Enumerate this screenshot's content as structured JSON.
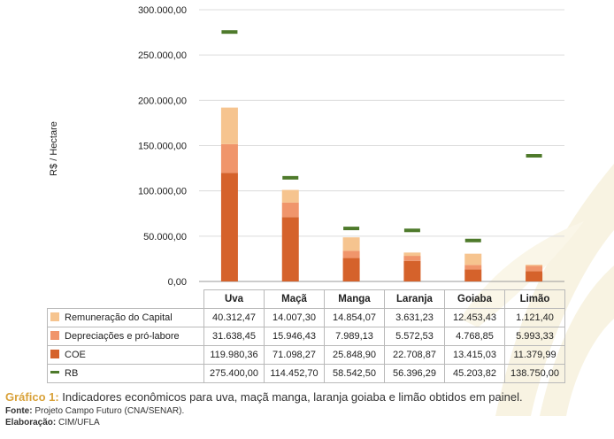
{
  "chart_data": {
    "type": "bar",
    "subtype": "stacked-bar-with-marker",
    "categories": [
      "Uva",
      "Maçã",
      "Manga",
      "Laranja",
      "Goiaba",
      "Limão"
    ],
    "ylabel": "R$ / Hectare",
    "ylim": [
      0,
      300000
    ],
    "yticks": [
      "0,00",
      "50.000,00",
      "100.000,00",
      "150.000,00",
      "200.000,00",
      "250.000,00",
      "300.000,00"
    ],
    "ytick_values": [
      0,
      50000,
      100000,
      150000,
      200000,
      250000,
      300000
    ],
    "grid": true,
    "series": [
      {
        "name": "Remuneração do Capital",
        "kind": "stack",
        "color": "#f6c48f",
        "values": [
          40312.47,
          14007.3,
          14854.07,
          3631.23,
          12453.43,
          1121.4
        ],
        "labels": [
          "40.312,47",
          "14.007,30",
          "14.854,07",
          "3.631,23",
          "12.453,43",
          "1.121,40"
        ]
      },
      {
        "name": "Depreciações e pró-labore",
        "kind": "stack",
        "color": "#f0956b",
        "values": [
          31638.45,
          15946.43,
          7989.13,
          5572.53,
          4768.85,
          5993.33
        ],
        "labels": [
          "31.638,45",
          "15.946,43",
          "7.989,13",
          "5.572,53",
          "4.768,85",
          "5.993,33"
        ]
      },
      {
        "name": "COE",
        "kind": "stack",
        "color": "#d5622b",
        "values": [
          119980.36,
          71098.27,
          25848.9,
          22708.87,
          13415.03,
          11379.99
        ],
        "labels": [
          "119.980,36",
          "71.098,27",
          "25.848,90",
          "22.708,87",
          "13.415,03",
          "11.379,99"
        ]
      },
      {
        "name": "RB",
        "kind": "marker",
        "color": "#4e7a2b",
        "values": [
          275400.0,
          114452.7,
          58542.5,
          56396.29,
          45203.82,
          138750.0
        ],
        "labels": [
          "275.400,00",
          "114.452,70",
          "58.542,50",
          "56.396,29",
          "45.203,82",
          "138.750,00"
        ]
      }
    ]
  },
  "caption": {
    "label": "Gráfico 1:",
    "text": " Indicadores econômicos para uva, maçã manga, laranja goiaba e limão obtidos em painel."
  },
  "source": {
    "label": "Fonte:",
    "text": " Projeto Campo Futuro (CNA/SENAR)."
  },
  "elaboration": {
    "label": "Elaboração:",
    "text": " CIM/UFLA"
  },
  "colors": {
    "caption_accent": "#d9a23a",
    "watermark": "#f7f2df"
  }
}
